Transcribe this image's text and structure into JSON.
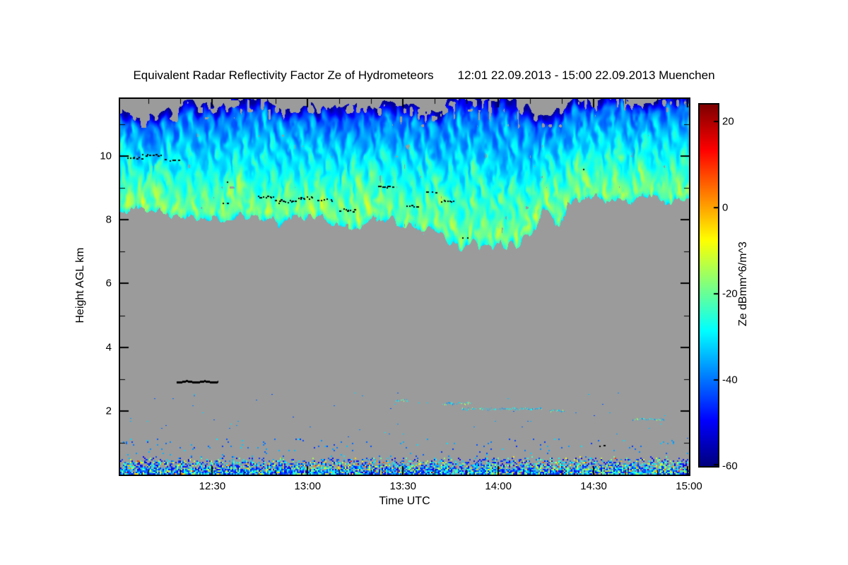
{
  "chart_data": {
    "type": "heatmap",
    "title": "Equivalent Radar Reflectivity Factor Ze of Hydrometeors",
    "subtitle": "12:01 22.09.2013 - 15:00 22.09.2013 Muenchen",
    "site": "Muenchen",
    "date": "22.09.2013",
    "time_start_utc": "12:01",
    "time_end_utc": "15:00",
    "xlabel": "Time UTC",
    "ylabel": "Height AGL km",
    "x_range_minutes": [
      721,
      900
    ],
    "x_ticks": [
      {
        "label": "12:30",
        "minutes": 750
      },
      {
        "label": "13:00",
        "minutes": 780
      },
      {
        "label": "13:30",
        "minutes": 810
      },
      {
        "label": "14:00",
        "minutes": 840
      },
      {
        "label": "14:30",
        "minutes": 870
      },
      {
        "label": "15:00",
        "minutes": 900
      }
    ],
    "x_minor_tick_minutes": 10,
    "y_range_km": [
      0,
      11.8
    ],
    "y_ticks_km": [
      2,
      4,
      6,
      8,
      10
    ],
    "y_minor_ticks_km": [
      1,
      3,
      5,
      7,
      9,
      11
    ],
    "colorbar": {
      "label": "Ze dBmm^6/m^3",
      "range": [
        -60,
        24
      ],
      "ticks": [
        20,
        0,
        -20,
        -40,
        -60
      ],
      "colormap": "jet"
    },
    "no_echo_color": "#9b9b9b",
    "seed": 1337,
    "cloud_layer": {
      "description": "high cloud deck of hydrometeors, Ze approx -45 to -8 dB, fibrous fall streaks, brightest near cloud base",
      "t": [
        0,
        0.04,
        0.08,
        0.12,
        0.16,
        0.2,
        0.24,
        0.28,
        0.32,
        0.36,
        0.4,
        0.44,
        0.48,
        0.52,
        0.56,
        0.6,
        0.64,
        0.68,
        0.72,
        0.745,
        0.77,
        0.8,
        0.84,
        0.88,
        0.92,
        0.96,
        1
      ],
      "base_km": [
        8.15,
        8.35,
        8.25,
        8.05,
        8.0,
        8.2,
        8.1,
        7.85,
        8.05,
        8.0,
        7.8,
        8.0,
        7.95,
        7.75,
        7.6,
        7.15,
        7.3,
        7.1,
        7.5,
        8.3,
        7.8,
        8.55,
        8.7,
        8.6,
        8.75,
        8.6,
        8.55
      ],
      "top_km": [
        11.3,
        11.55,
        11.35,
        11.6,
        11.75,
        11.8,
        11.7,
        11.8,
        11.75,
        11.6,
        11.5,
        11.7,
        11.75,
        11.55,
        11.45,
        11.8,
        11.8,
        11.7,
        11.55,
        11.3,
        11.5,
        11.75,
        11.8,
        11.75,
        11.7,
        11.8,
        11.8
      ],
      "ze_at_base_db": -17,
      "ze_at_top_db": -44
    },
    "surface_clutter": {
      "h_max_km": 0.55,
      "sparse_h_max_km": 1.15,
      "ze_range_db": [
        -52,
        12
      ]
    },
    "thin_layers": [
      {
        "t1": 0.485,
        "t2": 0.505,
        "h_km": 2.35
      },
      {
        "t1": 0.565,
        "t2": 0.615,
        "h_km": 2.25
      },
      {
        "t1": 0.6,
        "t2": 0.74,
        "h_km": 2.08
      },
      {
        "t1": 0.755,
        "t2": 0.78,
        "h_km": 2.02
      },
      {
        "t1": 0.9,
        "t2": 0.955,
        "h_km": 1.75
      }
    ],
    "black_marks": {
      "line": {
        "t1": 0.099,
        "t2": 0.172,
        "h_km": 2.92
      },
      "dot_clusters": [
        {
          "t": 0.025,
          "h_km": 9.95,
          "n": 7,
          "dt": 0.012,
          "dh_km": 0.06
        },
        {
          "t": 0.055,
          "h_km": 10.05,
          "n": 9,
          "dt": 0.015,
          "dh_km": 0.07
        },
        {
          "t": 0.09,
          "h_km": 9.9,
          "n": 5,
          "dt": 0.01,
          "dh_km": 0.05
        },
        {
          "t": 0.185,
          "h_km": 8.55,
          "n": 2,
          "dt": 0.004,
          "dh_km": 0.03
        },
        {
          "t": 0.19,
          "h_km": 9.2,
          "n": 1,
          "dt": 0.002,
          "dh_km": 0.01
        },
        {
          "t": 0.255,
          "h_km": 8.75,
          "n": 9,
          "dt": 0.014,
          "dh_km": 0.07
        },
        {
          "t": 0.29,
          "h_km": 8.6,
          "n": 11,
          "dt": 0.016,
          "dh_km": 0.08
        },
        {
          "t": 0.325,
          "h_km": 8.7,
          "n": 9,
          "dt": 0.013,
          "dh_km": 0.06
        },
        {
          "t": 0.36,
          "h_km": 8.65,
          "n": 7,
          "dt": 0.012,
          "dh_km": 0.06
        },
        {
          "t": 0.4,
          "h_km": 8.3,
          "n": 8,
          "dt": 0.013,
          "dh_km": 0.09
        },
        {
          "t": 0.465,
          "h_km": 9.05,
          "n": 8,
          "dt": 0.012,
          "dh_km": 0.06
        },
        {
          "t": 0.515,
          "h_km": 8.45,
          "n": 6,
          "dt": 0.01,
          "dh_km": 0.08
        },
        {
          "t": 0.545,
          "h_km": 8.9,
          "n": 4,
          "dt": 0.008,
          "dh_km": 0.05
        },
        {
          "t": 0.575,
          "h_km": 8.6,
          "n": 7,
          "dt": 0.011,
          "dh_km": 0.06
        },
        {
          "t": 0.605,
          "h_km": 7.45,
          "n": 2,
          "dt": 0.004,
          "dh_km": 0.02
        },
        {
          "t": 0.815,
          "h_km": 9.6,
          "n": 1,
          "dt": 0.002,
          "dh_km": 0.01
        },
        {
          "t": 0.845,
          "h_km": 0.92,
          "n": 2,
          "dt": 0.004,
          "dh_km": 0.02
        }
      ]
    }
  }
}
